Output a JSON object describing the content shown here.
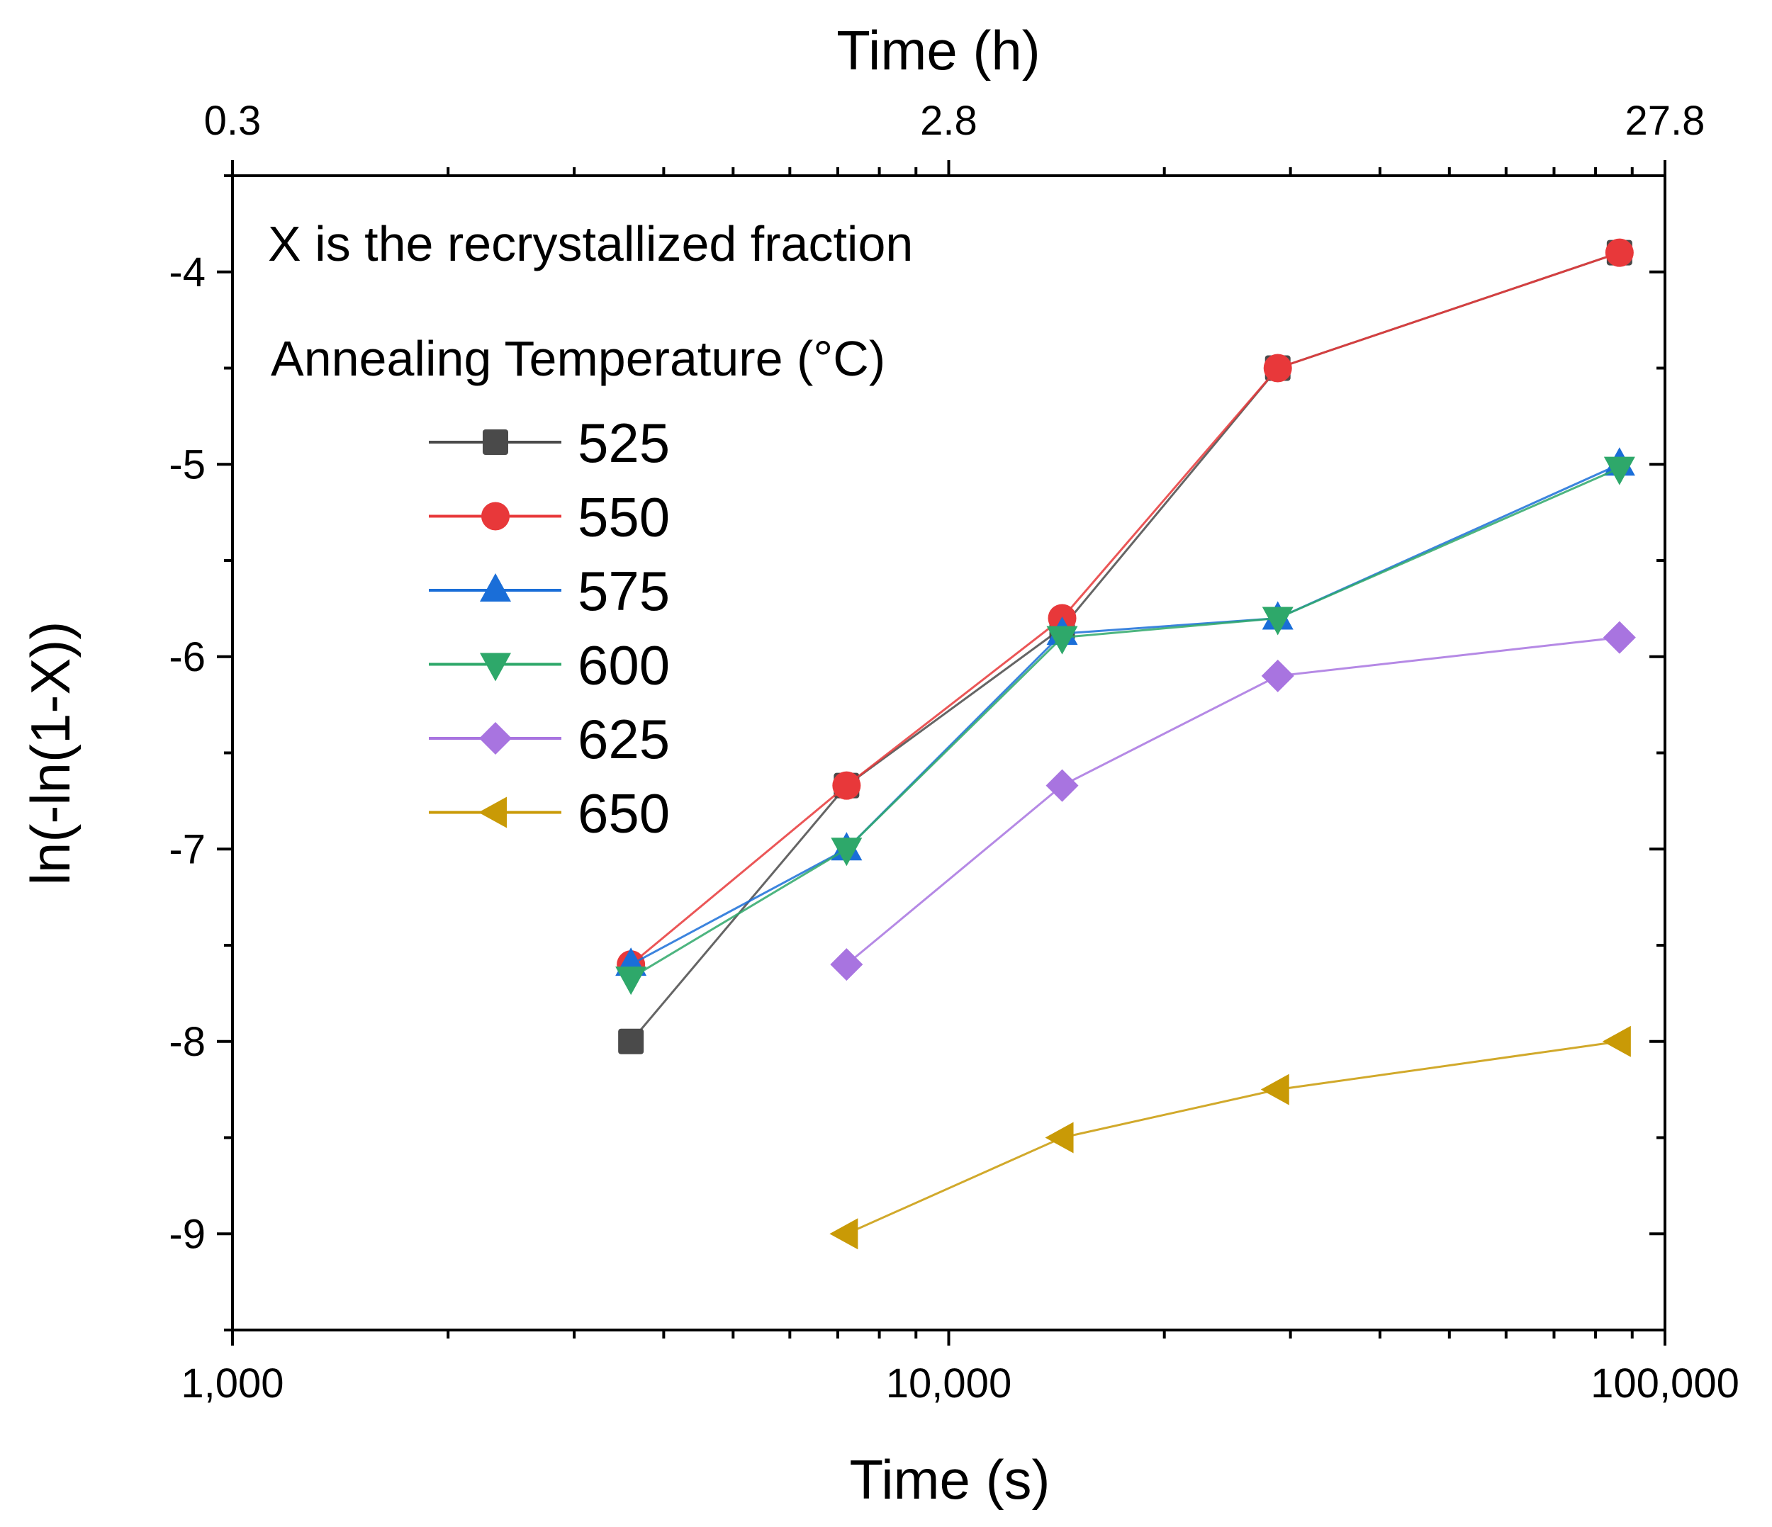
{
  "chart_data": {
    "type": "line",
    "xscale": "log",
    "xlabel": "Time (s)",
    "x2label": "Time (h)",
    "ylabel": "ln(-ln(1-X))",
    "xlim": [
      1000,
      100000
    ],
    "ylim": [
      -9.5,
      -3.5
    ],
    "xticks": [
      1000,
      10000,
      100000
    ],
    "xtick_labels": [
      "1,000",
      "10,000",
      "100,000"
    ],
    "x2tick_labels": [
      "0.3",
      "2.8",
      "27.8"
    ],
    "yticks": [
      -4,
      -5,
      -6,
      -7,
      -8,
      -9
    ],
    "ytick_labels": [
      "-4",
      "-5",
      "-6",
      "-7",
      "-8",
      "-9"
    ],
    "grid": false,
    "annotations": [
      "X is the recrystallized fraction"
    ],
    "legend_title": "Annealing Temperature (°C)",
    "legend_placement": "top-left",
    "series": [
      {
        "name": "525",
        "marker": "square",
        "color": "#4a4a4a",
        "x": [
          3600,
          7200,
          14400,
          28800,
          86400
        ],
        "y": [
          -8.0,
          -6.67,
          -5.85,
          -4.5,
          -3.9
        ]
      },
      {
        "name": "550",
        "marker": "circle",
        "color": "#e8383a",
        "x": [
          3600,
          7200,
          14400,
          28800,
          86400
        ],
        "y": [
          -7.6,
          -6.67,
          -5.8,
          -4.5,
          -3.9
        ]
      },
      {
        "name": "575",
        "marker": "triangle-up",
        "color": "#1a6ed8",
        "x": [
          3600,
          7200,
          14400,
          28800,
          86400
        ],
        "y": [
          -7.6,
          -7.0,
          -5.88,
          -5.8,
          -5.0
        ]
      },
      {
        "name": "600",
        "marker": "triangle-down",
        "color": "#2ea86a",
        "x": [
          3600,
          7200,
          14400,
          28800,
          86400
        ],
        "y": [
          -7.67,
          -7.0,
          -5.9,
          -5.8,
          -5.02
        ]
      },
      {
        "name": "625",
        "marker": "diamond",
        "color": "#a874e0",
        "x": [
          7200,
          14400,
          28800,
          86400
        ],
        "y": [
          -7.6,
          -6.67,
          -6.1,
          -5.9
        ]
      },
      {
        "name": "650",
        "marker": "triangle-left",
        "color": "#c99a06",
        "x": [
          7200,
          14400,
          28800,
          86400
        ],
        "y": [
          -9.0,
          -8.5,
          -8.25,
          -8.0
        ]
      }
    ]
  }
}
